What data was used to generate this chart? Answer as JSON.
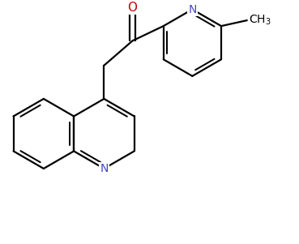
{
  "background_color": "#ffffff",
  "bond_color": "#000000",
  "N_color": "#4444cc",
  "O_color": "#cc0000",
  "line_width": 1.6,
  "figsize": [
    3.69,
    3.01
  ],
  "dpi": 100,
  "xlim": [
    0,
    7.5
  ],
  "ylim": [
    0,
    6.1
  ]
}
